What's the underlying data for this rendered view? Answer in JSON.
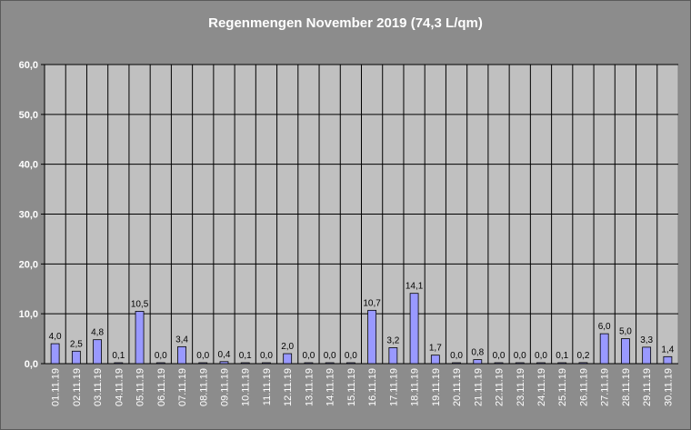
{
  "chart_data": {
    "type": "bar",
    "title": "Regenmengen November 2019 (74,3 L/qm)",
    "xlabel": "",
    "ylabel": "",
    "ylim": [
      0,
      60
    ],
    "yticks": [
      "0,0",
      "10,0",
      "20,0",
      "30,0",
      "40,0",
      "50,0",
      "60,0"
    ],
    "grid": true,
    "categories": [
      "01.11.19",
      "02.11.19",
      "03.11.19",
      "04.11.19",
      "05.11.19",
      "06.11.19",
      "07.11.19",
      "08.11.19",
      "09.11.19",
      "10.11.19",
      "11.11.19",
      "12.11.19",
      "13.11.19",
      "14.11.19",
      "15.11.19",
      "16.11.19",
      "17.11.19",
      "18.11.19",
      "19.11.19",
      "20.11.19",
      "21.11.19",
      "22.11.19",
      "23.11.19",
      "24.11.19",
      "25.11.19",
      "26.11.19",
      "27.11.19",
      "28.11.19",
      "29.11.19",
      "30.11.19"
    ],
    "values": [
      4.0,
      2.5,
      4.8,
      0.1,
      10.5,
      0.0,
      3.4,
      0.0,
      0.4,
      0.1,
      0.0,
      2.0,
      0.0,
      0.0,
      0.0,
      10.7,
      3.2,
      14.1,
      1.7,
      0.0,
      0.8,
      0.0,
      0.0,
      0.0,
      0.1,
      0.2,
      6.0,
      5.0,
      3.3,
      1.4
    ],
    "value_labels": [
      "4,0",
      "2,5",
      "4,8",
      "0,1",
      "10,5",
      "0,0",
      "3,4",
      "0,0",
      "0,4",
      "0,1",
      "0,0",
      "2,0",
      "0,0",
      "0,0",
      "0,0",
      "10,7",
      "3,2",
      "14,1",
      "1,7",
      "0,0",
      "0,8",
      "0,0",
      "0,0",
      "0,0",
      "0,1",
      "0,2",
      "6,0",
      "5,0",
      "3,3",
      "1,4"
    ],
    "colors": {
      "background": "#8c8c8c",
      "plot_area": "#c0c0c0",
      "bar": "#9999ff",
      "bar_outline": "#000000",
      "gridline": "#000000",
      "text": "#ffffff",
      "value_label": "#000000"
    }
  }
}
